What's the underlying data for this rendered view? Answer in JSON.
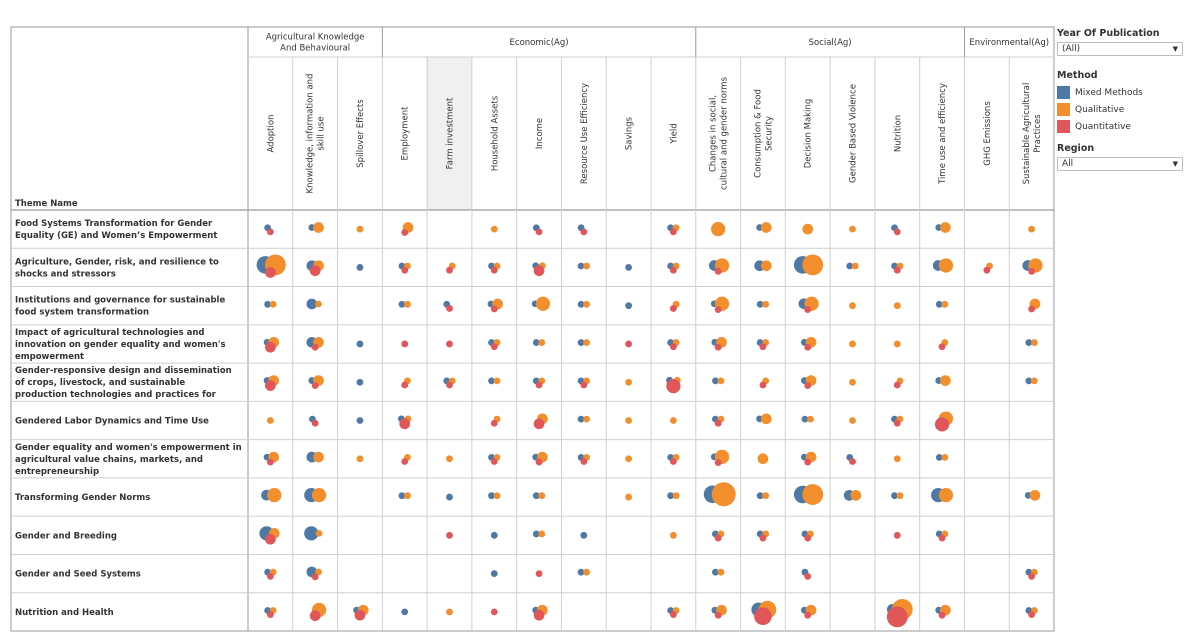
{
  "viz": {
    "row_header_label": "Theme Name",
    "groups": [
      {
        "label": "Agricultural Knowledge And Behavioural",
        "cols": 3
      },
      {
        "label": "Economic(Ag)",
        "cols": 7
      },
      {
        "label": "Social(Ag)",
        "cols": 6
      },
      {
        "label": "Environmental(Ag)",
        "cols": 2
      }
    ],
    "columns": [
      "Adoption",
      "Knowledge, information and skill use",
      "Spillover Effects",
      "Employment",
      "Farm investment",
      "Household Assets",
      "Income",
      "Resource Use Efficiency",
      "Savings",
      "Yield",
      "Changes in social, cultural and gender norms",
      "Consumption & Food Security",
      "Decision Making",
      "Gender Based Violence",
      "Nutrition",
      "Time use and efficiency",
      "GHG Emissions",
      "Sustainable Agricultural Practices"
    ],
    "rows": [
      "Food Systems Transformation for Gender Equality (GE) and Women’s Empowerment",
      "Agriculture, Gender, risk, and resilience to shocks and stressors",
      "Institutions and governance for sustainable food system transformation",
      "Impact of agricultural technologies and innovation on gender equality and women's empowerment",
      "Gender-responsive design and dissemination of crops, livestock, and sustainable production technologies and practices for gender equality and ..",
      "Gendered Labor Dynamics and Time Use",
      "Gender equality and women's empowerment in agricultural value chains, markets, and entrepreneurship",
      "Transforming Gender Norms",
      "Gender and Breeding",
      "Gender and Seed Systems",
      "Nutrition and Health"
    ]
  },
  "filters": {
    "year": {
      "label": "Year Of Publication",
      "value": "(All)"
    },
    "method": {
      "label": "Method",
      "items": [
        {
          "name": "Mixed Methods",
          "color": "#4e79a7"
        },
        {
          "name": "Qualitative",
          "color": "#f28e2b"
        },
        {
          "name": "Quantitative",
          "color": "#e15759"
        }
      ]
    },
    "region": {
      "label": "Region",
      "value": "All"
    }
  },
  "chart_data": {
    "type": "scatter",
    "title": "",
    "encoding": "circle size = number of studies, color = method",
    "series_order": [
      "Mixed Methods",
      "Qualitative",
      "Quantitative"
    ],
    "cells": [
      [
        [
          1,
          0,
          1
        ],
        [
          1,
          2,
          0
        ],
        [
          0,
          1,
          0
        ],
        [
          0,
          2,
          1
        ],
        null,
        [
          0,
          1,
          0
        ],
        [
          1,
          0,
          1
        ],
        [
          1,
          0,
          1
        ],
        null,
        [
          1,
          1,
          1
        ],
        [
          0,
          3,
          0
        ],
        [
          1,
          2,
          0
        ],
        [
          0,
          2,
          0
        ],
        [
          0,
          1,
          0
        ],
        [
          1,
          0,
          1
        ],
        [
          1,
          2,
          0
        ],
        null,
        [
          0,
          1,
          0
        ]
      ],
      [
        [
          4,
          5,
          2
        ],
        [
          2,
          2,
          2
        ],
        [
          1,
          0,
          0
        ],
        [
          1,
          1,
          1
        ],
        [
          0,
          1,
          1
        ],
        [
          1,
          1,
          1
        ],
        [
          1,
          1,
          2
        ],
        [
          1,
          1,
          0
        ],
        [
          1,
          0,
          0
        ],
        [
          1,
          1,
          1
        ],
        [
          2,
          3,
          1
        ],
        [
          2,
          2,
          0
        ],
        [
          4,
          5,
          0
        ],
        [
          1,
          1,
          0
        ],
        [
          1,
          1,
          1
        ],
        [
          2,
          3,
          0
        ],
        [
          0,
          1,
          1
        ],
        [
          2,
          3,
          1
        ]
      ],
      [
        [
          1,
          1,
          0
        ],
        [
          2,
          1,
          0
        ],
        null,
        [
          1,
          1,
          0
        ],
        [
          1,
          0,
          1
        ],
        [
          1,
          2,
          1
        ],
        [
          1,
          3,
          0
        ],
        [
          1,
          1,
          0
        ],
        [
          1,
          0,
          0
        ],
        [
          0,
          1,
          1
        ],
        [
          1,
          3,
          1
        ],
        [
          1,
          1,
          0
        ],
        [
          2,
          3,
          1
        ],
        [
          0,
          1,
          0
        ],
        [
          0,
          1,
          0
        ],
        [
          1,
          1,
          0
        ],
        null,
        [
          0,
          2,
          1
        ]
      ],
      [
        [
          1,
          2,
          2
        ],
        [
          2,
          2,
          1
        ],
        [
          1,
          0,
          0
        ],
        [
          0,
          0,
          1
        ],
        [
          0,
          0,
          1
        ],
        [
          1,
          1,
          1
        ],
        [
          1,
          1,
          0
        ],
        [
          1,
          1,
          0
        ],
        [
          0,
          0,
          1
        ],
        [
          1,
          1,
          1
        ],
        [
          1,
          2,
          1
        ],
        [
          1,
          1,
          1
        ],
        [
          1,
          2,
          1
        ],
        [
          0,
          1,
          0
        ],
        [
          0,
          1,
          0
        ],
        [
          0,
          1,
          1
        ],
        null,
        [
          1,
          1,
          0
        ]
      ],
      [
        [
          1,
          2,
          2
        ],
        [
          1,
          2,
          1
        ],
        [
          1,
          0,
          0
        ],
        [
          0,
          1,
          1
        ],
        [
          1,
          1,
          1
        ],
        [
          1,
          1,
          0
        ],
        [
          1,
          1,
          1
        ],
        [
          1,
          1,
          1
        ],
        [
          0,
          1,
          0
        ],
        [
          1,
          1,
          3
        ],
        [
          1,
          1,
          0
        ],
        [
          0,
          1,
          1
        ],
        [
          1,
          2,
          1
        ],
        [
          0,
          1,
          0
        ],
        [
          0,
          1,
          1
        ],
        [
          1,
          2,
          0
        ],
        null,
        [
          1,
          1,
          0
        ]
      ],
      [
        [
          0,
          1,
          0
        ],
        [
          1,
          0,
          1
        ],
        [
          1,
          0,
          0
        ],
        [
          1,
          1,
          2
        ],
        null,
        [
          0,
          1,
          1
        ],
        [
          0,
          2,
          2
        ],
        [
          1,
          1,
          0
        ],
        [
          0,
          1,
          0
        ],
        [
          0,
          1,
          0
        ],
        [
          1,
          1,
          1
        ],
        [
          1,
          2,
          0
        ],
        [
          1,
          1,
          0
        ],
        [
          0,
          1,
          0
        ],
        [
          1,
          1,
          1
        ],
        [
          0,
          3,
          3
        ],
        null,
        null
      ],
      [
        [
          1,
          2,
          1
        ],
        [
          2,
          2,
          0
        ],
        [
          0,
          1,
          0
        ],
        [
          0,
          1,
          1
        ],
        [
          0,
          1,
          0
        ],
        [
          1,
          1,
          1
        ],
        [
          1,
          2,
          1
        ],
        [
          1,
          1,
          1
        ],
        [
          0,
          1,
          0
        ],
        [
          1,
          1,
          1
        ],
        [
          1,
          3,
          1
        ],
        [
          0,
          2,
          0
        ],
        [
          1,
          2,
          1
        ],
        [
          1,
          0,
          1
        ],
        [
          0,
          1,
          0
        ],
        [
          1,
          1,
          0
        ],
        null,
        null
      ],
      [
        [
          2,
          3,
          0
        ],
        [
          3,
          3,
          0
        ],
        null,
        [
          1,
          1,
          0
        ],
        [
          1,
          0,
          0
        ],
        [
          1,
          1,
          0
        ],
        [
          1,
          1,
          0
        ],
        null,
        [
          0,
          1,
          0
        ],
        [
          1,
          1,
          0
        ],
        [
          4,
          6,
          0
        ],
        [
          1,
          1,
          0
        ],
        [
          4,
          5,
          0
        ],
        [
          2,
          2,
          0
        ],
        [
          1,
          1,
          0
        ],
        [
          3,
          3,
          0
        ],
        null,
        [
          1,
          2,
          0
        ]
      ],
      [
        [
          3,
          2,
          2
        ],
        [
          3,
          1,
          0
        ],
        null,
        null,
        [
          0,
          0,
          1
        ],
        [
          1,
          0,
          0
        ],
        [
          1,
          1,
          0
        ],
        [
          1,
          0,
          0
        ],
        null,
        [
          0,
          1,
          0
        ],
        [
          1,
          1,
          1
        ],
        [
          1,
          1,
          1
        ],
        [
          1,
          1,
          1
        ],
        null,
        [
          0,
          0,
          1
        ],
        [
          1,
          1,
          1
        ],
        null,
        null
      ],
      [
        [
          1,
          1,
          1
        ],
        [
          2,
          1,
          1
        ],
        null,
        null,
        null,
        [
          1,
          0,
          0
        ],
        [
          0,
          0,
          1
        ],
        [
          1,
          1,
          0
        ],
        null,
        null,
        [
          1,
          1,
          0
        ],
        null,
        [
          1,
          0,
          1
        ],
        null,
        null,
        null,
        null,
        [
          1,
          1,
          1
        ]
      ],
      [
        [
          1,
          1,
          1
        ],
        [
          0,
          3,
          2
        ],
        [
          1,
          2,
          2
        ],
        [
          1,
          0,
          0
        ],
        [
          0,
          1,
          0
        ],
        [
          0,
          0,
          1
        ],
        [
          1,
          2,
          2
        ],
        null,
        null,
        [
          1,
          1,
          1
        ],
        [
          1,
          2,
          1
        ],
        [
          3,
          4,
          4
        ],
        [
          1,
          2,
          1
        ],
        null,
        [
          2,
          5,
          5
        ],
        [
          1,
          2,
          1
        ],
        null,
        [
          1,
          1,
          1
        ]
      ]
    ]
  }
}
